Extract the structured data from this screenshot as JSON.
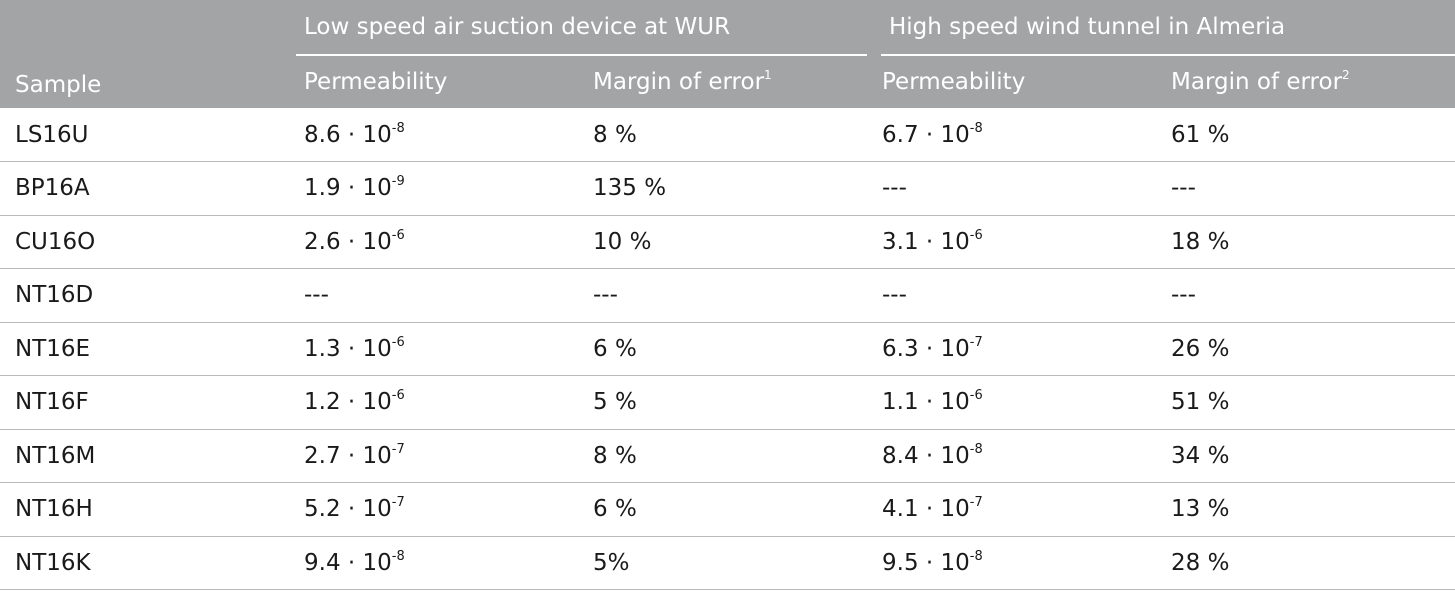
{
  "header": {
    "sample": "Sample",
    "group_low": "Low speed air suction device at WUR",
    "group_high": "High speed wind tunnel in Almeria",
    "permeability_low": "Permeability",
    "margin_low": "Margin of error",
    "margin_low_footnote": "1",
    "permeability_high": "Permeability",
    "margin_high": "Margin of error",
    "margin_high_footnote": "2"
  },
  "rows": [
    {
      "sample": "LS16U",
      "perm_low": {
        "mantissa": "8.6 · 10",
        "exponent": "-8"
      },
      "margin_low": "8 %",
      "perm_high": {
        "mantissa": "6.7 · 10",
        "exponent": "-8"
      },
      "margin_high": "61 %"
    },
    {
      "sample": "BP16A",
      "perm_low": {
        "mantissa": "1.9 · 10",
        "exponent": "-9"
      },
      "margin_low": "135 %",
      "perm_high": {
        "mantissa": "---",
        "exponent": ""
      },
      "margin_high": "---"
    },
    {
      "sample": "CU16O",
      "perm_low": {
        "mantissa": "2.6 · 10",
        "exponent": "-6"
      },
      "margin_low": "10 %",
      "perm_high": {
        "mantissa": "3.1 · 10",
        "exponent": "-6"
      },
      "margin_high": "18 %"
    },
    {
      "sample": "NT16D",
      "perm_low": {
        "mantissa": "---",
        "exponent": ""
      },
      "margin_low": "---",
      "perm_high": {
        "mantissa": "---",
        "exponent": ""
      },
      "margin_high": "---"
    },
    {
      "sample": "NT16E",
      "perm_low": {
        "mantissa": "1.3 · 10",
        "exponent": "-6"
      },
      "margin_low": "6 %",
      "perm_high": {
        "mantissa": "6.3 · 10",
        "exponent": "-7"
      },
      "margin_high": "26 %"
    },
    {
      "sample": "NT16F",
      "perm_low": {
        "mantissa": "1.2 · 10",
        "exponent": "-6"
      },
      "margin_low": "5 %",
      "perm_high": {
        "mantissa": "1.1 · 10",
        "exponent": "-6"
      },
      "margin_high": "51 %"
    },
    {
      "sample": "NT16M",
      "perm_low": {
        "mantissa": "2.7 · 10",
        "exponent": "-7"
      },
      "margin_low": "8 %",
      "perm_high": {
        "mantissa": "8.4 · 10",
        "exponent": "-8"
      },
      "margin_high": "34 %"
    },
    {
      "sample": "NT16H",
      "perm_low": {
        "mantissa": "5.2 · 10",
        "exponent": "-7"
      },
      "margin_low": "6 %",
      "perm_high": {
        "mantissa": "4.1 · 10",
        "exponent": "-7"
      },
      "margin_high": "13 %"
    },
    {
      "sample": "NT16K",
      "perm_low": {
        "mantissa": "9.4 · 10",
        "exponent": "-8"
      },
      "margin_low": "5%",
      "perm_high": {
        "mantissa": "9.5 · 10",
        "exponent": "-8"
      },
      "margin_high": "28 %"
    }
  ],
  "colors": {
    "header_bg": "#a2a4a6",
    "header_text": "#ffffff",
    "row_divider": "#b8babc",
    "body_text": "#1a1a1a"
  }
}
